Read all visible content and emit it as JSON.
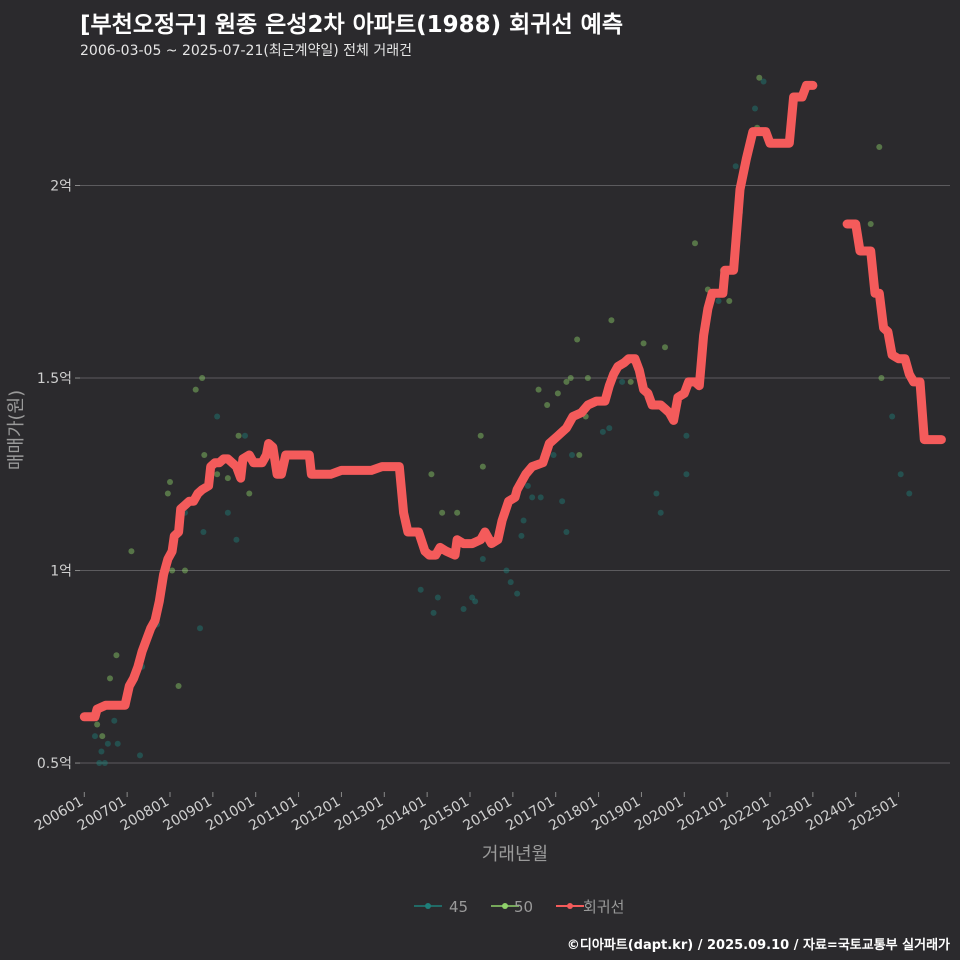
{
  "chart_data": {
    "type": "line",
    "title": "[부천오정구] 원종 은성2차 아파트(1988) 회귀선 예측",
    "subtitle": "2006-03-05 ~ 2025-07-21(최근계약일) 전체 거래건",
    "xlabel": "거래년월",
    "ylabel": "매매가(원)",
    "caption": "©디아파트(dapt.kr) / 2025.09.10 / 자료=국토교통부 실거래가",
    "x_tick_labels": [
      "200601",
      "200701",
      "200801",
      "200901",
      "201001",
      "201101",
      "201201",
      "201301",
      "201401",
      "201501",
      "201601",
      "201701",
      "201801",
      "201901",
      "202001",
      "202101",
      "202201",
      "202301",
      "202401",
      "202501"
    ],
    "y_ticks": [
      {
        "value": 0.5,
        "label": "0.5억"
      },
      {
        "value": 1.0,
        "label": "1억"
      },
      {
        "value": 1.5,
        "label": "1.5억"
      },
      {
        "value": 2.0,
        "label": "2억"
      }
    ],
    "ylim": [
      0.43,
      2.3
    ],
    "xlim": [
      2005.9,
      2026.2
    ],
    "grid": true,
    "legend_position": "bottom",
    "legend": [
      {
        "name": "45",
        "color": "#1e7f7a",
        "kind": "point"
      },
      {
        "name": "50",
        "color": "#8fd16a",
        "kind": "point"
      },
      {
        "name": "회귀선",
        "color": "#f45b5b",
        "kind": "line"
      }
    ],
    "series": [
      {
        "name": "45",
        "color": "#1e7f7a",
        "points": [
          [
            2006.25,
            0.57
          ],
          [
            2006.35,
            0.5
          ],
          [
            2006.4,
            0.53
          ],
          [
            2006.48,
            0.5
          ],
          [
            2006.55,
            0.55
          ],
          [
            2006.7,
            0.61
          ],
          [
            2006.78,
            0.55
          ],
          [
            2007.3,
            0.52
          ],
          [
            2007.35,
            0.75
          ],
          [
            2007.7,
            0.86
          ],
          [
            2008.35,
            1.15
          ],
          [
            2008.7,
            0.85
          ],
          [
            2008.78,
            1.1
          ],
          [
            2009.1,
            1.4
          ],
          [
            2009.35,
            1.15
          ],
          [
            2009.55,
            1.08
          ],
          [
            2009.75,
            1.35
          ],
          [
            2013.85,
            0.95
          ],
          [
            2014.15,
            0.89
          ],
          [
            2014.25,
            0.93
          ],
          [
            2014.85,
            0.9
          ],
          [
            2015.05,
            0.93
          ],
          [
            2015.12,
            0.92
          ],
          [
            2015.3,
            1.03
          ],
          [
            2015.85,
            1.0
          ],
          [
            2015.95,
            0.97
          ],
          [
            2016.1,
            0.94
          ],
          [
            2016.2,
            1.09
          ],
          [
            2016.25,
            1.13
          ],
          [
            2016.35,
            1.22
          ],
          [
            2016.45,
            1.19
          ],
          [
            2016.65,
            1.19
          ],
          [
            2016.95,
            1.3
          ],
          [
            2017.15,
            1.18
          ],
          [
            2017.25,
            1.1
          ],
          [
            2017.38,
            1.3
          ],
          [
            2018.1,
            1.36
          ],
          [
            2018.25,
            1.37
          ],
          [
            2018.55,
            1.49
          ],
          [
            2019.35,
            1.2
          ],
          [
            2019.45,
            1.15
          ],
          [
            2020.05,
            1.25
          ],
          [
            2020.05,
            1.35
          ],
          [
            2020.8,
            1.7
          ],
          [
            2021.2,
            2.05
          ],
          [
            2021.3,
            1.93
          ],
          [
            2021.65,
            2.2
          ],
          [
            2021.85,
            2.27
          ],
          [
            2024.85,
            1.4
          ],
          [
            2025.05,
            1.25
          ],
          [
            2025.25,
            1.2
          ]
        ]
      },
      {
        "name": "50",
        "color": "#8fd16a",
        "points": [
          [
            2006.3,
            0.6
          ],
          [
            2006.42,
            0.57
          ],
          [
            2006.6,
            0.72
          ],
          [
            2006.75,
            0.78
          ],
          [
            2006.9,
            0.65
          ],
          [
            2007.1,
            1.05
          ],
          [
            2007.85,
            0.97
          ],
          [
            2007.95,
            1.2
          ],
          [
            2008.0,
            1.23
          ],
          [
            2008.05,
            1.0
          ],
          [
            2008.2,
            0.7
          ],
          [
            2008.35,
            1.0
          ],
          [
            2008.6,
            1.47
          ],
          [
            2008.75,
            1.5
          ],
          [
            2008.8,
            1.3
          ],
          [
            2009.1,
            1.25
          ],
          [
            2009.35,
            1.24
          ],
          [
            2009.6,
            1.35
          ],
          [
            2009.85,
            1.2
          ],
          [
            2010.3,
            1.3
          ],
          [
            2014.1,
            1.25
          ],
          [
            2014.35,
            1.15
          ],
          [
            2014.7,
            1.15
          ],
          [
            2015.25,
            1.35
          ],
          [
            2015.3,
            1.27
          ],
          [
            2016.6,
            1.47
          ],
          [
            2016.8,
            1.43
          ],
          [
            2017.05,
            1.46
          ],
          [
            2017.25,
            1.49
          ],
          [
            2017.35,
            1.5
          ],
          [
            2017.5,
            1.6
          ],
          [
            2017.55,
            1.3
          ],
          [
            2017.7,
            1.4
          ],
          [
            2017.75,
            1.5
          ],
          [
            2018.3,
            1.65
          ],
          [
            2018.75,
            1.49
          ],
          [
            2019.05,
            1.59
          ],
          [
            2019.55,
            1.58
          ],
          [
            2020.25,
            1.85
          ],
          [
            2020.55,
            1.73
          ],
          [
            2020.9,
            1.78
          ],
          [
            2021.05,
            1.7
          ],
          [
            2021.7,
            2.15
          ],
          [
            2021.75,
            2.28
          ],
          [
            2024.35,
            1.9
          ],
          [
            2024.55,
            2.1
          ],
          [
            2024.6,
            1.5
          ],
          [
            2025.35,
            1.5
          ]
        ]
      },
      {
        "name": "회귀선",
        "color": "#f45b5b",
        "segments": [
          [
            [
              2006.0,
              0.62
            ],
            [
              2006.25,
              0.62
            ],
            [
              2006.3,
              0.64
            ],
            [
              2006.5,
              0.65
            ],
            [
              2006.7,
              0.65
            ],
            [
              2006.95,
              0.65
            ],
            [
              2007.05,
              0.7
            ],
            [
              2007.15,
              0.72
            ],
            [
              2007.25,
              0.75
            ],
            [
              2007.35,
              0.79
            ],
            [
              2007.45,
              0.82
            ],
            [
              2007.55,
              0.85
            ],
            [
              2007.65,
              0.87
            ],
            [
              2007.75,
              0.92
            ],
            [
              2007.85,
              0.99
            ],
            [
              2007.95,
              1.03
            ],
            [
              2008.05,
              1.05
            ],
            [
              2008.1,
              1.09
            ],
            [
              2008.2,
              1.1
            ],
            [
              2008.25,
              1.16
            ],
            [
              2008.35,
              1.17
            ],
            [
              2008.45,
              1.18
            ],
            [
              2008.55,
              1.18
            ],
            [
              2008.65,
              1.2
            ],
            [
              2008.75,
              1.21
            ],
            [
              2008.9,
              1.22
            ],
            [
              2008.95,
              1.27
            ],
            [
              2009.05,
              1.28
            ],
            [
              2009.15,
              1.28
            ],
            [
              2009.25,
              1.29
            ],
            [
              2009.35,
              1.29
            ],
            [
              2009.45,
              1.28
            ],
            [
              2009.55,
              1.27
            ],
            [
              2009.65,
              1.24
            ],
            [
              2009.7,
              1.29
            ],
            [
              2009.85,
              1.3
            ],
            [
              2009.95,
              1.28
            ],
            [
              2010.15,
              1.28
            ],
            [
              2010.25,
              1.3
            ],
            [
              2010.3,
              1.33
            ],
            [
              2010.4,
              1.32
            ],
            [
              2010.5,
              1.25
            ],
            [
              2010.6,
              1.25
            ],
            [
              2010.7,
              1.3
            ],
            [
              2010.85,
              1.3
            ],
            [
              2011.05,
              1.3
            ],
            [
              2011.25,
              1.3
            ],
            [
              2011.3,
              1.25
            ],
            [
              2011.6,
              1.25
            ],
            [
              2011.75,
              1.25
            ],
            [
              2012.0,
              1.26
            ],
            [
              2012.5,
              1.26
            ],
            [
              2012.7,
              1.26
            ],
            [
              2012.95,
              1.27
            ],
            [
              2013.25,
              1.27
            ],
            [
              2013.35,
              1.27
            ],
            [
              2013.45,
              1.15
            ],
            [
              2013.55,
              1.1
            ],
            [
              2013.8,
              1.1
            ],
            [
              2013.95,
              1.05
            ],
            [
              2014.05,
              1.04
            ],
            [
              2014.2,
              1.04
            ],
            [
              2014.3,
              1.06
            ],
            [
              2014.45,
              1.05
            ],
            [
              2014.65,
              1.04
            ],
            [
              2014.7,
              1.08
            ],
            [
              2014.85,
              1.07
            ],
            [
              2015.05,
              1.07
            ],
            [
              2015.25,
              1.08
            ],
            [
              2015.35,
              1.1
            ],
            [
              2015.5,
              1.07
            ],
            [
              2015.65,
              1.08
            ],
            [
              2015.75,
              1.13
            ],
            [
              2015.9,
              1.18
            ],
            [
              2016.05,
              1.19
            ],
            [
              2016.1,
              1.21
            ],
            [
              2016.3,
              1.25
            ],
            [
              2016.45,
              1.27
            ],
            [
              2016.7,
              1.28
            ],
            [
              2016.85,
              1.33
            ],
            [
              2017.05,
              1.35
            ],
            [
              2017.25,
              1.37
            ],
            [
              2017.4,
              1.4
            ],
            [
              2017.6,
              1.41
            ],
            [
              2017.75,
              1.43
            ],
            [
              2017.95,
              1.44
            ],
            [
              2018.15,
              1.44
            ],
            [
              2018.25,
              1.48
            ],
            [
              2018.35,
              1.51
            ],
            [
              2018.45,
              1.53
            ],
            [
              2018.6,
              1.54
            ],
            [
              2018.7,
              1.55
            ],
            [
              2018.85,
              1.55
            ],
            [
              2018.95,
              1.52
            ],
            [
              2019.05,
              1.47
            ],
            [
              2019.15,
              1.46
            ],
            [
              2019.25,
              1.43
            ],
            [
              2019.45,
              1.43
            ],
            [
              2019.55,
              1.42
            ],
            [
              2019.65,
              1.41
            ],
            [
              2019.75,
              1.39
            ],
            [
              2019.85,
              1.45
            ],
            [
              2020.0,
              1.46
            ],
            [
              2020.1,
              1.49
            ],
            [
              2020.25,
              1.49
            ],
            [
              2020.35,
              1.48
            ],
            [
              2020.45,
              1.61
            ],
            [
              2020.55,
              1.68
            ],
            [
              2020.65,
              1.72
            ],
            [
              2020.75,
              1.72
            ],
            [
              2020.9,
              1.72
            ],
            [
              2020.95,
              1.78
            ],
            [
              2021.15,
              1.78
            ],
            [
              2021.3,
              1.99
            ],
            [
              2021.45,
              2.07
            ],
            [
              2021.6,
              2.14
            ],
            [
              2021.75,
              2.14
            ],
            [
              2021.9,
              2.14
            ],
            [
              2022.0,
              2.11
            ],
            [
              2022.25,
              2.11
            ],
            [
              2022.45,
              2.11
            ],
            [
              2022.55,
              2.23
            ],
            [
              2022.75,
              2.23
            ],
            [
              2022.85,
              2.26
            ],
            [
              2023.0,
              2.26
            ]
          ],
          [
            [
              2023.8,
              1.9
            ],
            [
              2024.0,
              1.9
            ],
            [
              2024.1,
              1.83
            ],
            [
              2024.35,
              1.83
            ],
            [
              2024.45,
              1.72
            ],
            [
              2024.55,
              1.72
            ],
            [
              2024.65,
              1.63
            ],
            [
              2024.75,
              1.62
            ],
            [
              2024.85,
              1.56
            ],
            [
              2025.0,
              1.55
            ],
            [
              2025.15,
              1.55
            ],
            [
              2025.25,
              1.51
            ],
            [
              2025.35,
              1.49
            ],
            [
              2025.5,
              1.49
            ],
            [
              2025.6,
              1.34
            ],
            [
              2025.75,
              1.34
            ],
            [
              2026.0,
              1.34
            ]
          ]
        ]
      }
    ]
  }
}
